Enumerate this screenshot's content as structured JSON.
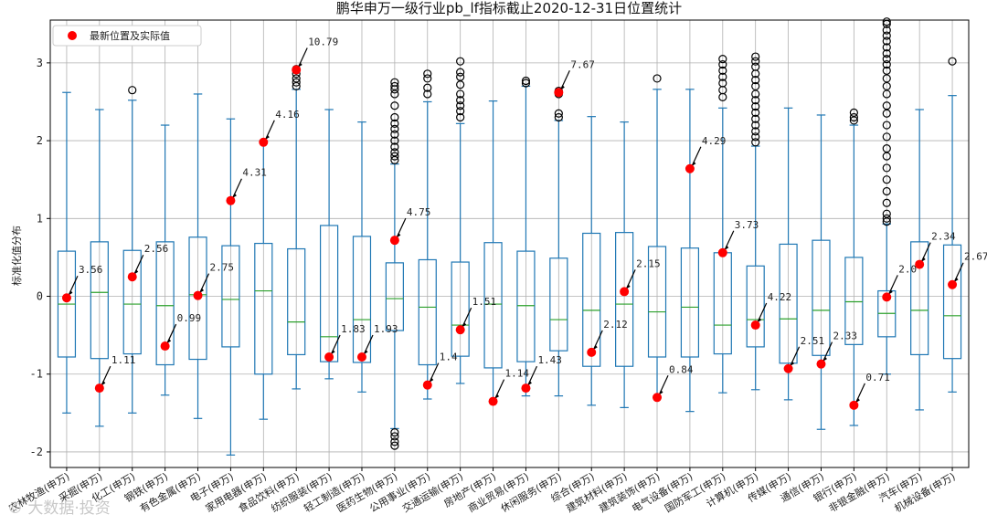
{
  "chart_data": {
    "type": "box",
    "title": "鹏华申万一级行业pb_lf指标截止2020-12-31日位置统计",
    "ylabel": "标准化值分布",
    "xlabel": "",
    "ylim": [
      -2.2,
      3.55
    ],
    "yticks": [
      -2,
      -1,
      0,
      1,
      2,
      3
    ],
    "grid": true,
    "legend": {
      "position": "top-left",
      "entries": [
        "最新位置及实际值"
      ]
    },
    "colors": {
      "box": "#1f77b4",
      "median": "#2ca02c",
      "latest": "#ff0000",
      "arrow": "#000000"
    },
    "categories": [
      {
        "name": "农林牧渔(申万)",
        "wlo": -1.5,
        "q1": -0.78,
        "med": -0.1,
        "q3": 0.58,
        "whi": 2.62,
        "fliers": [],
        "latest": -0.02,
        "value": "3.56"
      },
      {
        "name": "采掘(申万)",
        "wlo": -1.67,
        "q1": -0.8,
        "med": 0.05,
        "q3": 0.7,
        "whi": 2.4,
        "fliers": [],
        "latest": -1.18,
        "value": "1.11"
      },
      {
        "name": "化工(申万)",
        "wlo": -1.5,
        "q1": -0.74,
        "med": -0.1,
        "q3": 0.59,
        "whi": 2.52,
        "fliers": [
          2.65
        ],
        "latest": 0.25,
        "value": "2.56"
      },
      {
        "name": "钢铁(申万)",
        "wlo": -1.27,
        "q1": -0.88,
        "med": -0.12,
        "q3": 0.7,
        "whi": 2.2,
        "fliers": [],
        "latest": -0.64,
        "value": "0.99"
      },
      {
        "name": "有色金属(申万)",
        "wlo": -1.57,
        "q1": -0.81,
        "med": 0.02,
        "q3": 0.76,
        "whi": 2.6,
        "fliers": [],
        "latest": 0.01,
        "value": "2.75"
      },
      {
        "name": "电子(申万)",
        "wlo": -2.04,
        "q1": -0.65,
        "med": -0.04,
        "q3": 0.65,
        "whi": 2.28,
        "fliers": [],
        "latest": 1.23,
        "value": "4.31"
      },
      {
        "name": "家用电器(申万)",
        "wlo": -1.58,
        "q1": -1.0,
        "med": 0.07,
        "q3": 0.68,
        "whi": 2.0,
        "fliers": [],
        "latest": 1.98,
        "value": "4.16"
      },
      {
        "name": "食品饮料(申万)",
        "wlo": -1.19,
        "q1": -0.75,
        "med": -0.33,
        "q3": 0.61,
        "whi": 2.66,
        "fliers": [
          2.7,
          2.75,
          2.8,
          2.86,
          2.92
        ],
        "latest": 2.91,
        "value": "10.79"
      },
      {
        "name": "纺织服装(申万)",
        "wlo": -1.06,
        "q1": -0.84,
        "med": -0.52,
        "q3": 0.91,
        "whi": 2.4,
        "fliers": [],
        "latest": -0.78,
        "value": "1.83"
      },
      {
        "name": "轻工制造(申万)",
        "wlo": -1.23,
        "q1": -0.85,
        "med": -0.3,
        "q3": 0.77,
        "whi": 2.24,
        "fliers": [],
        "latest": -0.78,
        "value": "1.93"
      },
      {
        "name": "医药生物(申万)",
        "wlo": -1.7,
        "q1": -0.44,
        "med": -0.03,
        "q3": 0.43,
        "whi": 1.7,
        "fliers": [
          1.75,
          1.8,
          1.85,
          1.92,
          2.0,
          2.08,
          2.15,
          2.22,
          2.3,
          2.45,
          2.6,
          2.66,
          2.7,
          2.75,
          -1.75,
          -1.8,
          -1.87,
          -1.92
        ],
        "latest": 0.72,
        "value": "4.75"
      },
      {
        "name": "公用事业(申万)",
        "wlo": -1.32,
        "q1": -0.88,
        "med": -0.14,
        "q3": 0.47,
        "whi": 2.5,
        "fliers": [
          2.6,
          2.68,
          2.8,
          2.86
        ],
        "latest": -1.14,
        "value": "1.4"
      },
      {
        "name": "交通运输(申万)",
        "wlo": -1.12,
        "q1": -0.77,
        "med": -0.37,
        "q3": 0.44,
        "whi": 2.22,
        "fliers": [
          2.3,
          2.38,
          2.45,
          2.52,
          2.6,
          2.72,
          2.82,
          2.88,
          3.02
        ],
        "latest": -0.43,
        "value": "1.51"
      },
      {
        "name": "房地产(申万)",
        "wlo": -1.35,
        "q1": -0.92,
        "med": -0.1,
        "q3": 0.69,
        "whi": 2.51,
        "fliers": [],
        "latest": -1.35,
        "value": "1.14"
      },
      {
        "name": "商业贸易(申万)",
        "wlo": -1.28,
        "q1": -0.84,
        "med": -0.12,
        "q3": 0.58,
        "whi": 2.7,
        "fliers": [
          2.74,
          2.77
        ],
        "latest": -1.18,
        "value": "1.43"
      },
      {
        "name": "休闲服务(申万)",
        "wlo": -1.28,
        "q1": -0.7,
        "med": -0.3,
        "q3": 0.49,
        "whi": 2.26,
        "fliers": [
          2.3,
          2.35,
          2.6,
          2.64
        ],
        "latest": 2.62,
        "value": "7.67"
      },
      {
        "name": "综合(申万)",
        "wlo": -1.4,
        "q1": -0.9,
        "med": -0.18,
        "q3": 0.81,
        "whi": 2.31,
        "fliers": [],
        "latest": -0.72,
        "value": "2.12"
      },
      {
        "name": "建筑材料(申万)",
        "wlo": -1.43,
        "q1": -0.9,
        "med": -0.1,
        "q3": 0.82,
        "whi": 2.24,
        "fliers": [],
        "latest": 0.06,
        "value": "2.15"
      },
      {
        "name": "建筑装饰(申万)",
        "wlo": -1.3,
        "q1": -0.78,
        "med": -0.2,
        "q3": 0.64,
        "whi": 2.66,
        "fliers": [
          2.8
        ],
        "latest": -1.3,
        "value": "0.84"
      },
      {
        "name": "电气设备(申万)",
        "wlo": -1.48,
        "q1": -0.78,
        "med": -0.14,
        "q3": 0.62,
        "whi": 2.66,
        "fliers": [],
        "latest": 1.64,
        "value": "4.29"
      },
      {
        "name": "国防军工(申万)",
        "wlo": -1.24,
        "q1": -0.74,
        "med": -0.37,
        "q3": 0.56,
        "whi": 2.42,
        "fliers": [
          2.56,
          2.65,
          2.74,
          2.82,
          2.9,
          2.98,
          3.05
        ],
        "latest": 0.56,
        "value": "3.73"
      },
      {
        "name": "计算机(申万)",
        "wlo": -1.2,
        "q1": -0.65,
        "med": -0.3,
        "q3": 0.39,
        "whi": 1.93,
        "fliers": [
          1.98,
          2.05,
          2.12,
          2.2,
          2.28,
          2.36,
          2.44,
          2.52,
          2.6,
          2.7,
          2.78,
          2.86,
          2.95,
          3.02,
          3.08
        ],
        "latest": -0.37,
        "value": "4.22"
      },
      {
        "name": "传媒(申万)",
        "wlo": -1.33,
        "q1": -0.86,
        "med": -0.29,
        "q3": 0.67,
        "whi": 2.42,
        "fliers": [],
        "latest": -0.93,
        "value": "2.51"
      },
      {
        "name": "通信(申万)",
        "wlo": -1.71,
        "q1": -0.76,
        "med": -0.18,
        "q3": 0.72,
        "whi": 2.33,
        "fliers": [],
        "latest": -0.87,
        "value": "2.33"
      },
      {
        "name": "银行(申万)",
        "wlo": -1.66,
        "q1": -0.62,
        "med": -0.07,
        "q3": 0.5,
        "whi": 2.2,
        "fliers": [
          2.26,
          2.3,
          2.36
        ],
        "latest": -1.4,
        "value": "0.71"
      },
      {
        "name": "非银金融(申万)",
        "wlo": -1.0,
        "q1": -0.52,
        "med": -0.22,
        "q3": 0.07,
        "whi": 0.93,
        "fliers": [
          0.96,
          1.0,
          1.06,
          1.2,
          1.35,
          1.5,
          1.65,
          1.8,
          1.9,
          2.05,
          2.2,
          2.35,
          2.45,
          2.6,
          2.7,
          2.8,
          2.9,
          2.98,
          3.05,
          3.12,
          3.2,
          3.28,
          3.35,
          3.42,
          3.5,
          3.53
        ],
        "latest": -0.01,
        "value": "2.0"
      },
      {
        "name": "汽车(申万)",
        "wlo": -1.46,
        "q1": -0.75,
        "med": -0.18,
        "q3": 0.7,
        "whi": 2.4,
        "fliers": [],
        "latest": 0.41,
        "value": "2.34"
      },
      {
        "name": "机械设备(申万)",
        "wlo": -1.23,
        "q1": -0.8,
        "med": -0.25,
        "q3": 0.66,
        "whi": 2.58,
        "fliers": [
          3.02
        ],
        "latest": 0.15,
        "value": "2.67"
      }
    ]
  },
  "watermark": "© 大数据·投资"
}
